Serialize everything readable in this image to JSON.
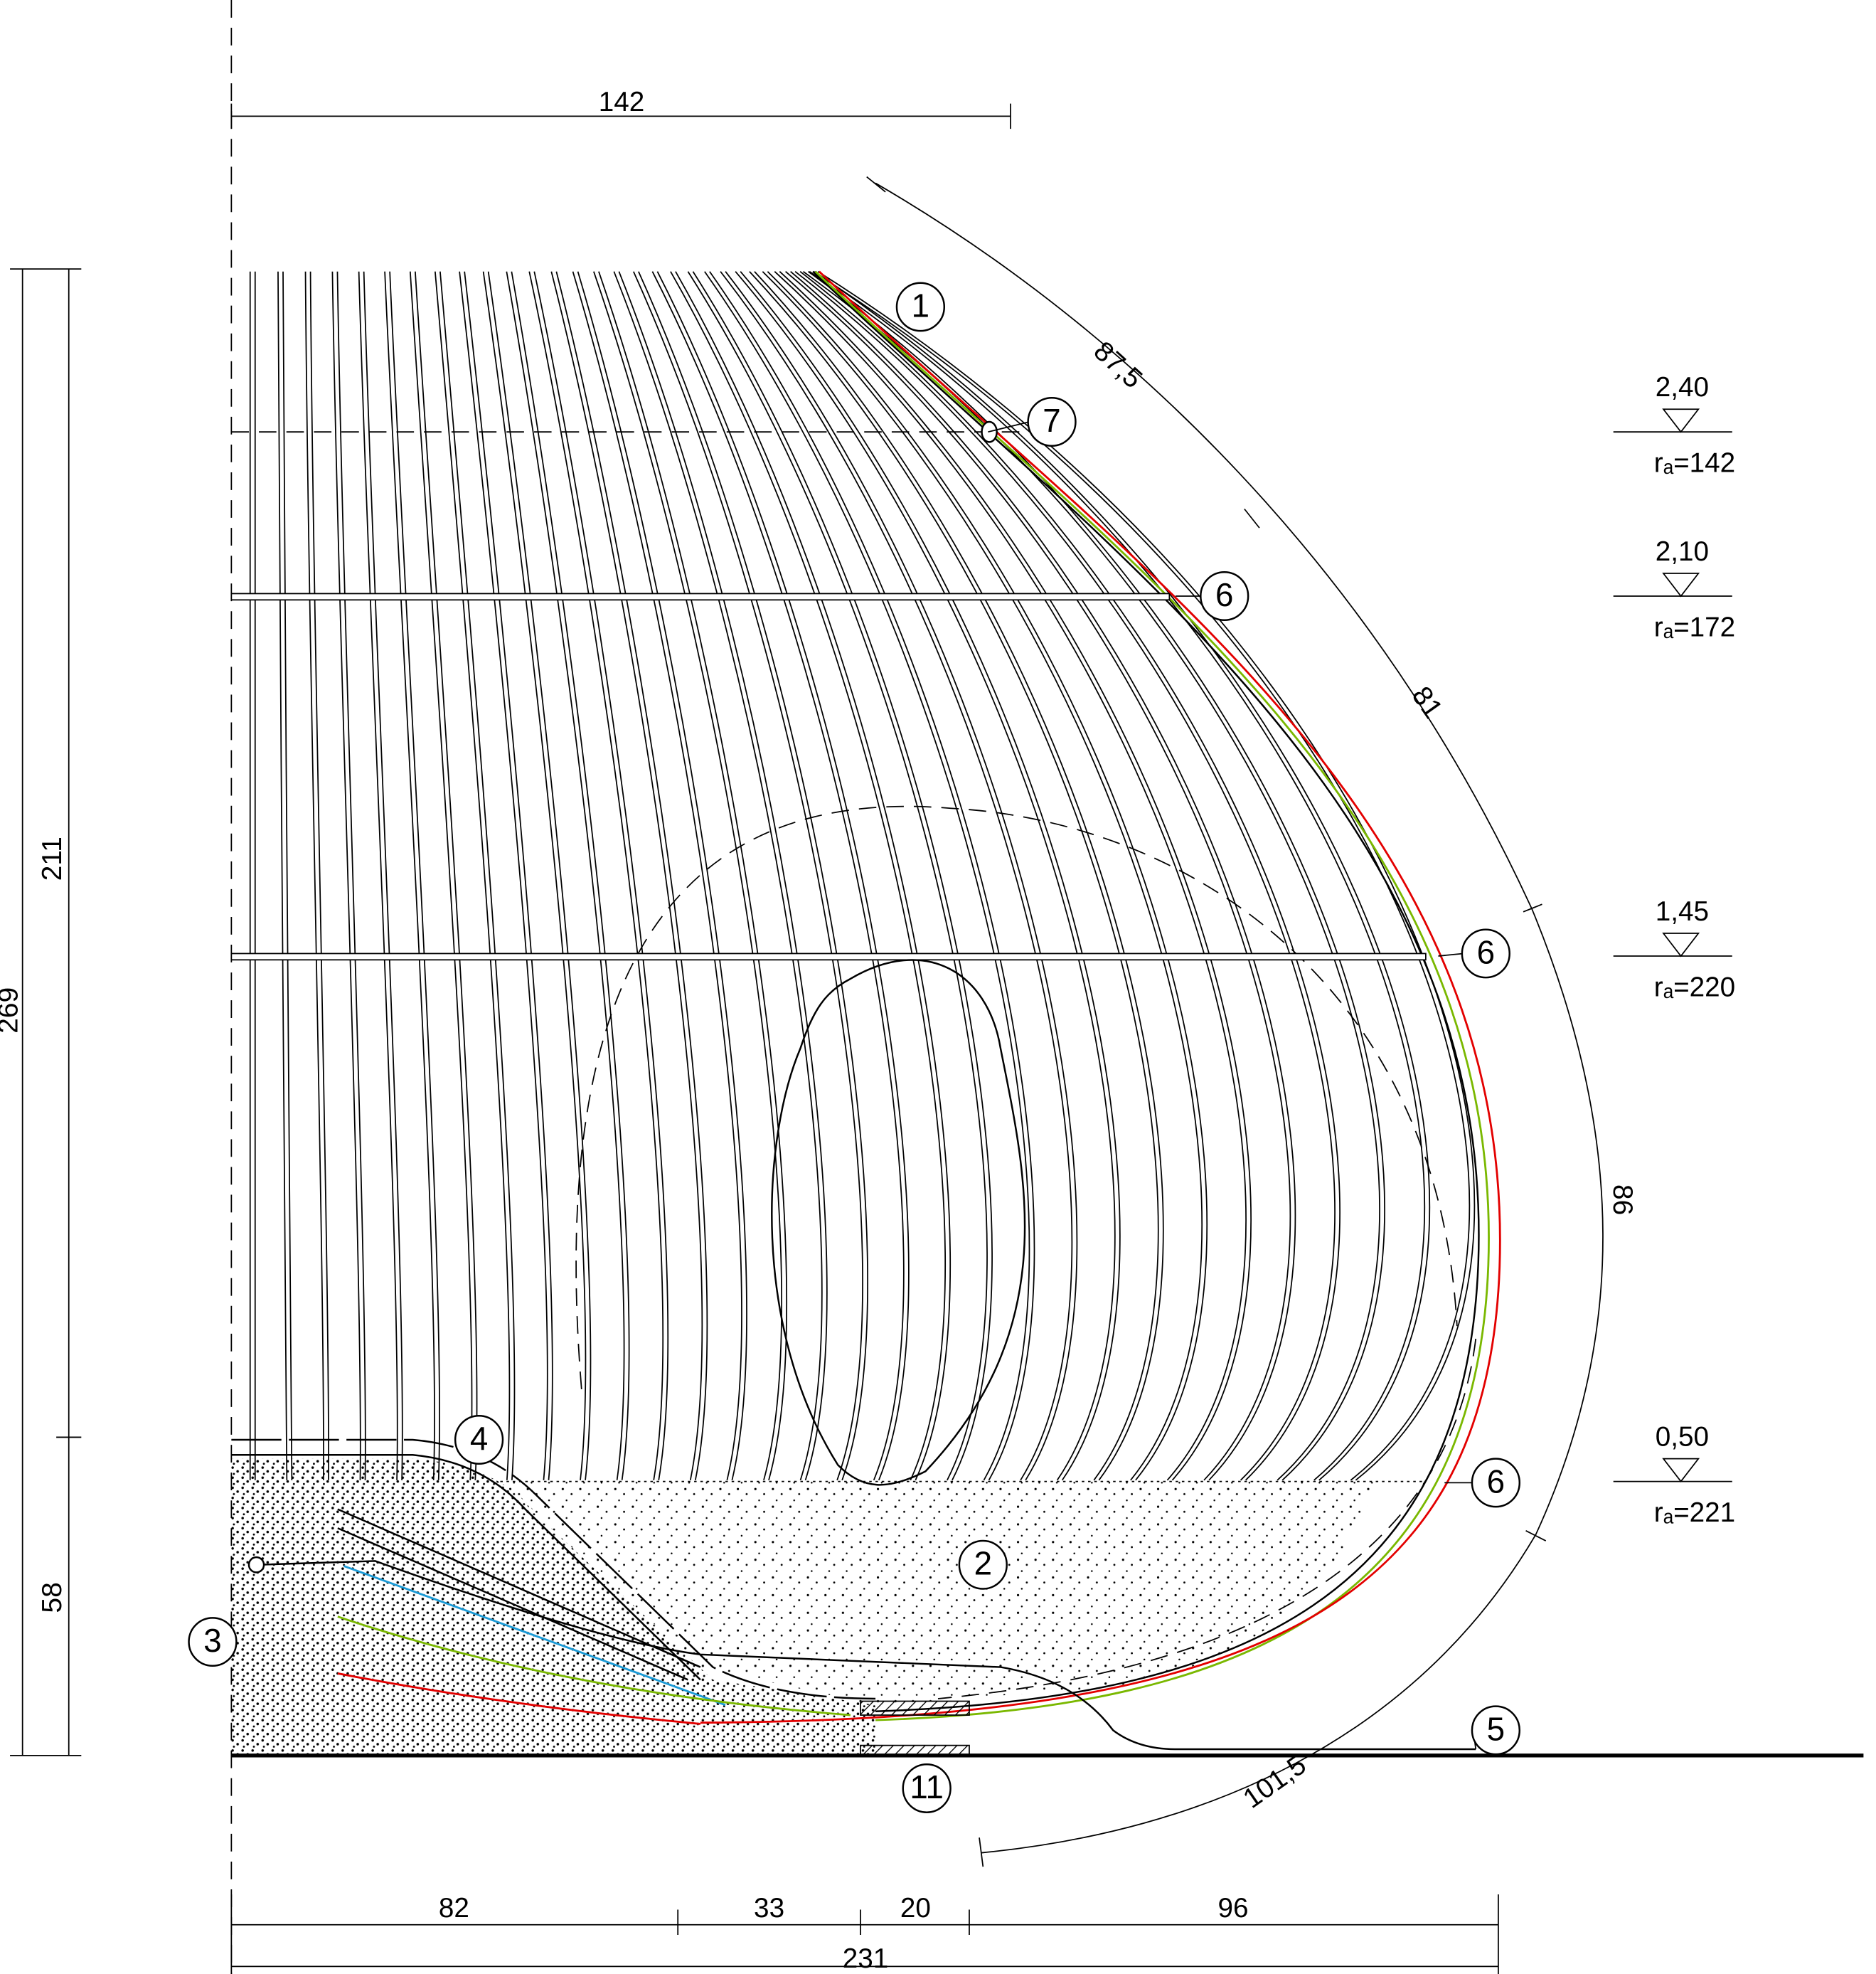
{
  "dimensions": {
    "top": "142",
    "arc": [
      "87,5",
      "81",
      "86",
      "101,5"
    ],
    "left": [
      "269",
      "211",
      "58"
    ],
    "bottom": [
      "82",
      "33",
      "20",
      "96"
    ],
    "total": "231"
  },
  "levels": [
    {
      "elevation": "2,40",
      "radius": "rₐ=142"
    },
    {
      "elevation": "2,10",
      "radius": "rₐ=172"
    },
    {
      "elevation": "1,45",
      "radius": "rₐ=220"
    },
    {
      "elevation": "0,50",
      "radius": "rₐ=221"
    }
  ],
  "callouts": [
    "1",
    "7",
    "6",
    "6",
    "6",
    "4",
    "2",
    "3",
    "5",
    "11"
  ]
}
